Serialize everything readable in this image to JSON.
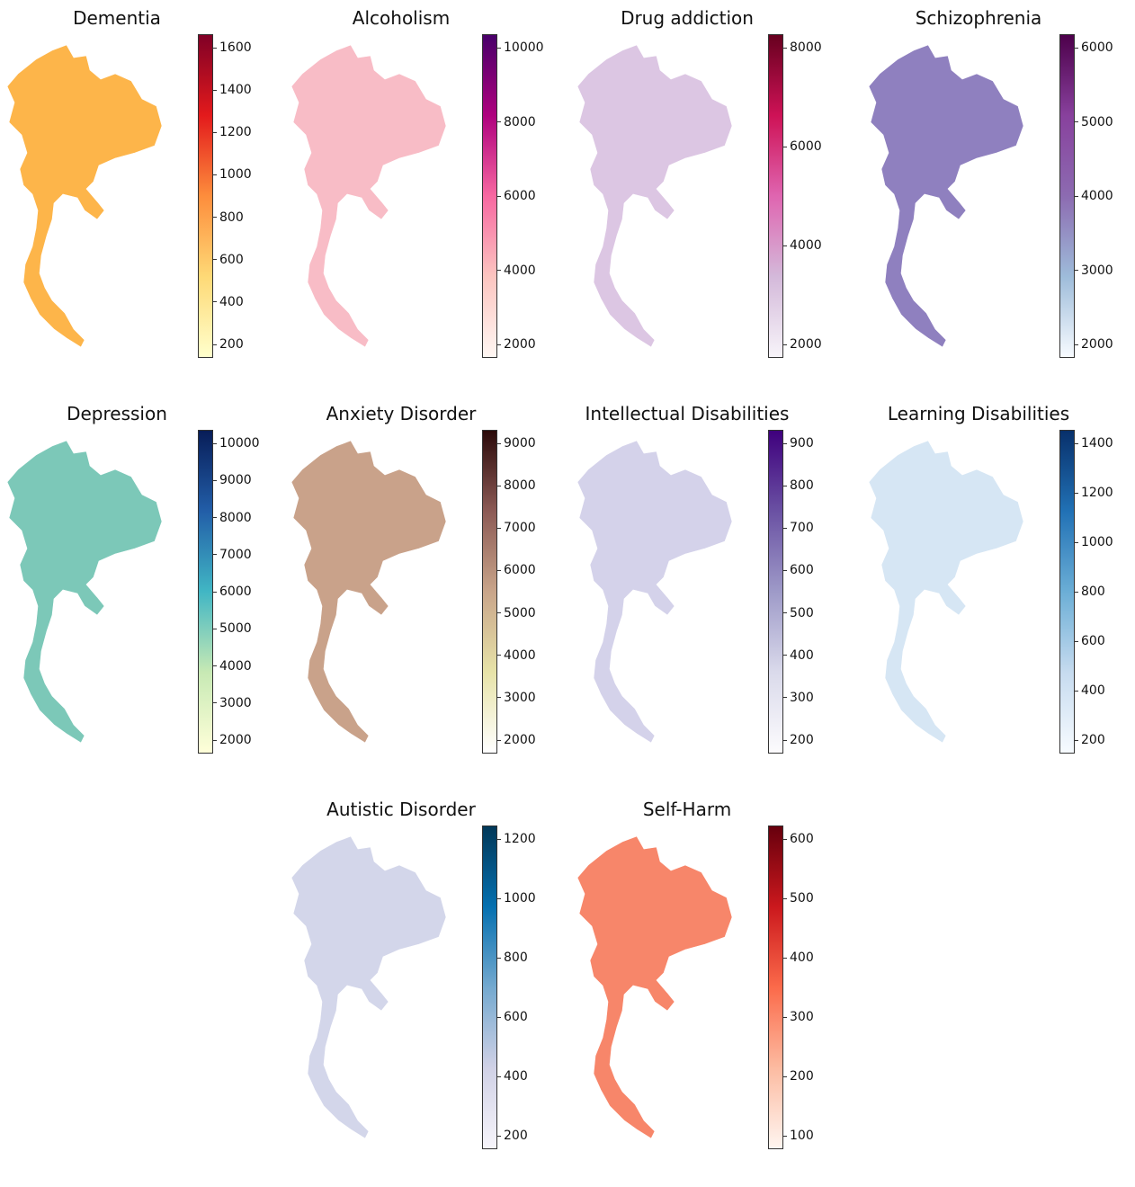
{
  "figure": {
    "panels": [
      {
        "title": "Dementia",
        "colormap": [
          "#ffffcc",
          "#fed976",
          "#fd8d3c",
          "#e31a1c",
          "#800026"
        ],
        "ticks": [
          "1600",
          "1400",
          "1200",
          "1000",
          "800",
          "600",
          "400",
          "200"
        ],
        "map_color": "#fdb54a"
      },
      {
        "title": "Alcoholism",
        "colormap": [
          "#fff7f3",
          "#fcc5c0",
          "#f768a1",
          "#ae017e",
          "#49006a"
        ],
        "ticks": [
          "10000",
          "8000",
          "6000",
          "4000",
          "2000"
        ],
        "map_color": "#f8bcc6"
      },
      {
        "title": "Drug addiction",
        "colormap": [
          "#f7f4f9",
          "#d4b9da",
          "#df65b0",
          "#ce1256",
          "#67001f"
        ],
        "ticks": [
          "8000",
          "6000",
          "4000",
          "2000"
        ],
        "map_color": "#dcc6e3"
      },
      {
        "title": "Schizophrenia",
        "colormap": [
          "#f7fbff",
          "#9ebcda",
          "#8c6bb1",
          "#88419d",
          "#4d004b"
        ],
        "ticks": [
          "6000",
          "5000",
          "4000",
          "3000",
          "2000"
        ],
        "map_color": "#8f80bf"
      },
      {
        "title": "Depression",
        "colormap": [
          "#ffffd9",
          "#c7e9b4",
          "#41b6c4",
          "#225ea8",
          "#081d58"
        ],
        "ticks": [
          "10000",
          "9000",
          "8000",
          "7000",
          "6000",
          "5000",
          "4000",
          "3000",
          "2000"
        ],
        "map_color": "#7cc8b8"
      },
      {
        "title": "Anxiety Disorder",
        "colormap": [
          "#ffffff",
          "#e7e3a8",
          "#c9a58a",
          "#8c5a55",
          "#2b0a0a"
        ],
        "ticks": [
          "9000",
          "8000",
          "7000",
          "6000",
          "5000",
          "4000",
          "3000",
          "2000"
        ],
        "map_color": "#c9a28a"
      },
      {
        "title": "Intellectual Disabilities",
        "colormap": [
          "#fcfbfd",
          "#dadaeb",
          "#9e9ac8",
          "#6a51a3",
          "#3f007d"
        ],
        "ticks": [
          "900",
          "800",
          "700",
          "600",
          "500",
          "400",
          "300",
          "200"
        ],
        "map_color": "#d4d2ea"
      },
      {
        "title": "Learning Disabilities",
        "colormap": [
          "#f7fbff",
          "#c6dbef",
          "#6baed6",
          "#2171b5",
          "#08306b"
        ],
        "ticks": [
          "1400",
          "1200",
          "1000",
          "800",
          "600",
          "400",
          "200"
        ],
        "map_color": "#d6e6f4"
      },
      {
        "title": "Autistic Disorder",
        "colormap": [
          "#f7f5fb",
          "#d0d1e6",
          "#74a9cf",
          "#0570b0",
          "#023858"
        ],
        "ticks": [
          "1200",
          "1000",
          "800",
          "600",
          "400",
          "200"
        ],
        "map_color": "#d3d6ea"
      },
      {
        "title": "Self-Harm",
        "colormap": [
          "#fff5f0",
          "#fcbba1",
          "#fb6a4a",
          "#cb181d",
          "#67000d"
        ],
        "ticks": [
          "600",
          "500",
          "400",
          "300",
          "200",
          "100"
        ],
        "map_color": "#f7866a"
      }
    ]
  }
}
